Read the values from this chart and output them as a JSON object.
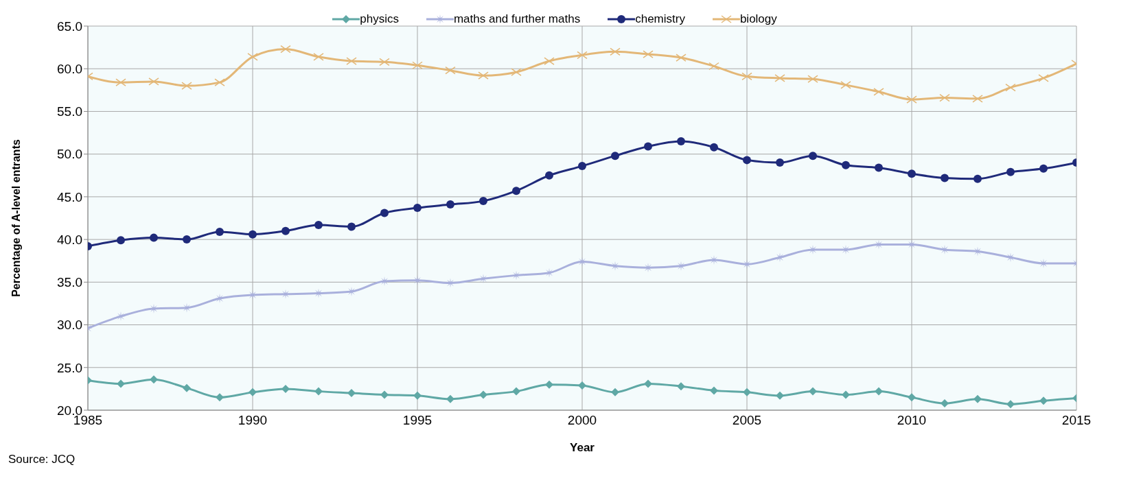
{
  "chart_data": {
    "type": "line",
    "xlabel": "Year",
    "ylabel": "Percentage of A-level entrants",
    "annotations": [
      "Source: JCQ"
    ],
    "x": [
      1985,
      1986,
      1987,
      1988,
      1989,
      1990,
      1991,
      1992,
      1993,
      1994,
      1995,
      1996,
      1997,
      1998,
      1999,
      2000,
      2001,
      2002,
      2003,
      2004,
      2005,
      2006,
      2007,
      2008,
      2009,
      2010,
      2011,
      2012,
      2013,
      2014,
      2015
    ],
    "xlim": [
      1985,
      2015
    ],
    "xticks": [
      1985,
      1990,
      1995,
      2000,
      2005,
      2010,
      2015
    ],
    "ylim": [
      20,
      65
    ],
    "yticks": [
      {
        "value": 20,
        "label": "20.0"
      },
      {
        "value": 25,
        "label": "25.0"
      },
      {
        "value": 30,
        "label": "30.0"
      },
      {
        "value": 35,
        "label": "35.0"
      },
      {
        "value": 40,
        "label": "40.0"
      },
      {
        "value": 45,
        "label": "45.0"
      },
      {
        "value": 50,
        "label": "50.0"
      },
      {
        "value": 55,
        "label": "55.0"
      },
      {
        "value": 60,
        "label": "60.0"
      },
      {
        "value": 65,
        "label": "65.0"
      }
    ],
    "grid": true,
    "legend": "top",
    "series": [
      {
        "name": "physics",
        "color": "#5fa8a5",
        "marker": "diamond",
        "values": [
          23.5,
          23.1,
          23.6,
          22.6,
          21.5,
          22.1,
          22.5,
          22.2,
          22.0,
          21.8,
          21.7,
          21.3,
          21.8,
          22.2,
          23.0,
          22.9,
          22.1,
          23.1,
          22.8,
          22.3,
          22.1,
          21.7,
          22.2,
          21.8,
          22.2,
          21.5,
          20.8,
          21.3,
          20.7,
          21.1,
          21.4
        ]
      },
      {
        "name": "maths and further maths",
        "color": "#a9b0dc",
        "marker": "star",
        "values": [
          29.6,
          31.0,
          31.9,
          32.0,
          33.1,
          33.5,
          33.6,
          33.7,
          33.9,
          35.1,
          35.2,
          34.9,
          35.4,
          35.8,
          36.1,
          37.4,
          36.9,
          36.7,
          36.9,
          37.6,
          37.1,
          37.9,
          38.8,
          38.8,
          39.4,
          39.4,
          38.8,
          38.6,
          37.9,
          37.2,
          37.2
        ]
      },
      {
        "name": "chemistry",
        "color": "#1f2a7a",
        "marker": "circle",
        "values": [
          39.2,
          39.9,
          40.2,
          40.0,
          40.9,
          40.6,
          41.0,
          41.7,
          41.5,
          43.1,
          43.7,
          44.1,
          44.5,
          45.7,
          47.5,
          48.6,
          49.8,
          50.9,
          51.5,
          50.8,
          49.3,
          49.0,
          49.8,
          48.7,
          48.4,
          47.7,
          47.2,
          47.1,
          47.9,
          48.3,
          49.0
        ]
      },
      {
        "name": "biology",
        "color": "#e3b777",
        "marker": "cross",
        "values": [
          59.1,
          58.4,
          58.5,
          58.0,
          58.4,
          61.4,
          62.3,
          61.4,
          60.9,
          60.8,
          60.4,
          59.8,
          59.2,
          59.6,
          60.9,
          61.6,
          62.0,
          61.7,
          61.3,
          60.3,
          59.1,
          58.9,
          58.8,
          58.1,
          57.3,
          56.4,
          56.6,
          56.5,
          57.8,
          58.9,
          60.6
        ]
      }
    ]
  }
}
